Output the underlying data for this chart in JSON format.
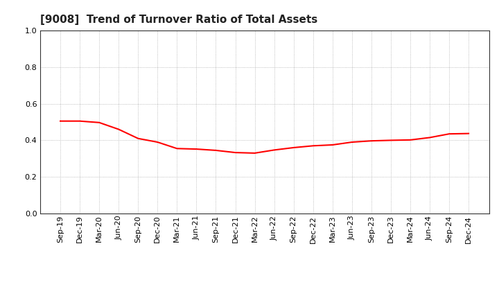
{
  "title": "[9008]  Trend of Turnover Ratio of Total Assets",
  "x_labels": [
    "Sep-19",
    "Dec-19",
    "Mar-20",
    "Jun-20",
    "Sep-20",
    "Dec-20",
    "Mar-21",
    "Jun-21",
    "Sep-21",
    "Dec-21",
    "Mar-22",
    "Jun-22",
    "Sep-22",
    "Dec-22",
    "Mar-23",
    "Jun-23",
    "Sep-23",
    "Dec-23",
    "Mar-24",
    "Jun-24",
    "Sep-24",
    "Dec-24"
  ],
  "y_values": [
    0.505,
    0.505,
    0.497,
    0.46,
    0.41,
    0.39,
    0.355,
    0.352,
    0.345,
    0.333,
    0.33,
    0.347,
    0.36,
    0.37,
    0.375,
    0.39,
    0.397,
    0.4,
    0.402,
    0.415,
    0.435,
    0.437
  ],
  "line_color": "#FF0000",
  "line_width": 1.5,
  "ylim": [
    0.0,
    1.0
  ],
  "yticks": [
    0.0,
    0.2,
    0.4,
    0.6,
    0.8,
    1.0
  ],
  "background_color": "#ffffff",
  "grid_color": "#aaaaaa",
  "title_fontsize": 11,
  "tick_fontsize": 8
}
